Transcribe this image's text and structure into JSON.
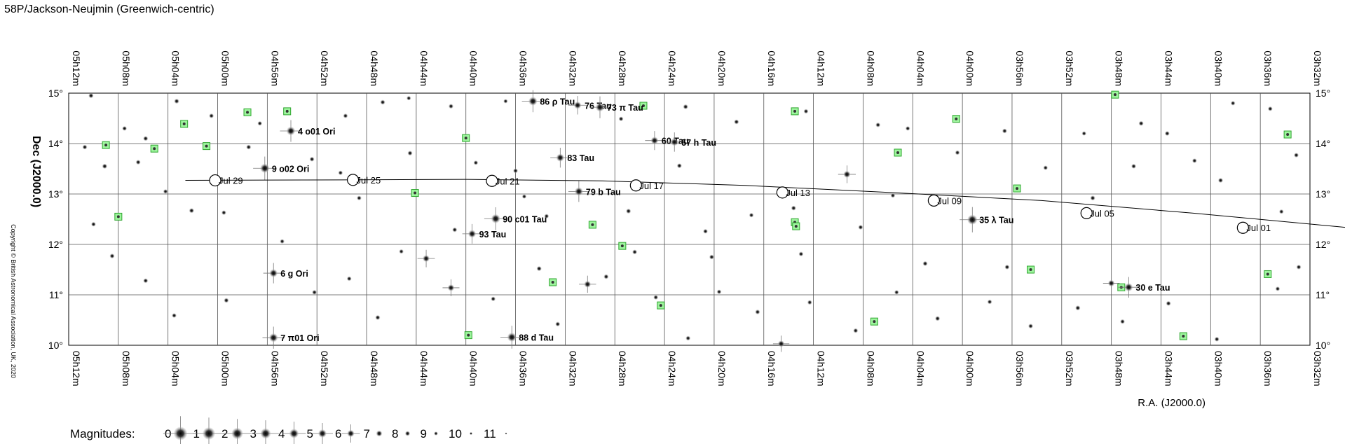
{
  "title": "58P/Jackson-Neujmin  (Greenwich-centric)",
  "copyright": "Copyright © British Astronomical Association, UK, 2020",
  "chart_data": {
    "type": "scatter",
    "xlabel": "R.A. (J2000.0)",
    "ylabel": "Dec (J2000.0)",
    "ra_ticks": [
      "05h12m",
      "05h08m",
      "05h04m",
      "05h00m",
      "04h56m",
      "04h52m",
      "04h48m",
      "04h44m",
      "04h40m",
      "04h36m",
      "04h32m",
      "04h28m",
      "04h24m",
      "04h20m",
      "04h16m",
      "04h12m",
      "04h08m",
      "04h04m",
      "04h00m",
      "03h56m",
      "03h52m",
      "03h48m",
      "03h44m",
      "03h40m",
      "03h36m",
      "03h32m"
    ],
    "dec_ticks": [
      "15°",
      "14°",
      "13°",
      "12°",
      "11°",
      "10°"
    ],
    "xlim_ra_minutes": [
      312,
      212
    ],
    "ylim_deg": [
      10,
      15
    ],
    "grid": true,
    "comet_path": [
      {
        "ra": 302.6,
        "dec": 13.27
      },
      {
        "ra": 290.0,
        "dec": 13.28
      },
      {
        "ra": 280.0,
        "dec": 13.29
      },
      {
        "ra": 269.0,
        "dec": 13.26
      },
      {
        "ra": 257.5,
        "dec": 13.17
      },
      {
        "ra": 245.8,
        "dec": 13.03
      },
      {
        "ra": 233.6,
        "dec": 12.87
      },
      {
        "ra": 221.4,
        "dec": 12.62
      },
      {
        "ra": 208.8,
        "dec": 12.33
      }
    ],
    "date_marks": [
      {
        "label": "Jul 29",
        "ra": 300.2,
        "dec": 13.27
      },
      {
        "label": "Jul 25",
        "ra": 289.1,
        "dec": 13.28
      },
      {
        "label": "Jul 21",
        "ra": 277.9,
        "dec": 13.26
      },
      {
        "label": "Jul 17",
        "ra": 266.3,
        "dec": 13.17
      },
      {
        "label": "Jul 13",
        "ra": 254.5,
        "dec": 13.03
      },
      {
        "label": "Jul 09",
        "ra": 242.3,
        "dec": 12.87
      },
      {
        "label": "Jul 05",
        "ra": 230.0,
        "dec": 12.62
      },
      {
        "label": "Jul 01",
        "ra": 217.4,
        "dec": 12.33
      }
    ],
    "named_stars": [
      {
        "label": "86 ρ Tau",
        "ra": 274.6,
        "dec": 14.84,
        "mag": 4.6
      },
      {
        "label": "76 Tau",
        "ra": 271.0,
        "dec": 14.76,
        "mag": 5.9
      },
      {
        "label": "73 π Tau",
        "ra": 269.2,
        "dec": 14.72,
        "mag": 4.7
      },
      {
        "label": "4 o01 Ori",
        "ra": 294.1,
        "dec": 14.25,
        "mag": 4.7
      },
      {
        "label": "60 Tau",
        "ra": 264.8,
        "dec": 14.06,
        "mag": 5.7
      },
      {
        "label": "57 h Tau",
        "ra": 263.2,
        "dec": 14.03,
        "mag": 5.6
      },
      {
        "label": "83 Tau",
        "ra": 272.4,
        "dec": 13.72,
        "mag": 5.4
      },
      {
        "label": "9 o02 Ori",
        "ra": 296.2,
        "dec": 13.51,
        "mag": 4.1
      },
      {
        "label": "79 b Tau",
        "ra": 270.9,
        "dec": 13.05,
        "mag": 5.0
      },
      {
        "label": "90 c01 Tau",
        "ra": 277.6,
        "dec": 12.51,
        "mag": 4.3
      },
      {
        "label": "93 Tau",
        "ra": 279.5,
        "dec": 12.21,
        "mag": 5.5
      },
      {
        "label": "35 λ Tau",
        "ra": 239.2,
        "dec": 12.49,
        "mag": 3.4
      },
      {
        "label": "6 g Ori",
        "ra": 295.5,
        "dec": 11.43,
        "mag": 5.2
      },
      {
        "label": "30 e Tau",
        "ra": 226.6,
        "dec": 11.15,
        "mag": 5.1
      },
      {
        "label": "7 π01 Ori",
        "ra": 295.5,
        "dec": 10.15,
        "mag": 4.6
      },
      {
        "label": "88 d Tau",
        "ra": 276.3,
        "dec": 10.16,
        "mag": 4.3
      }
    ],
    "other_stars": [
      {
        "ra": 283.2,
        "dec": 11.72,
        "mag": 6.3
      },
      {
        "ra": 281.2,
        "dec": 11.14,
        "mag": 6.5
      },
      {
        "ra": 270.2,
        "dec": 11.21,
        "mag": 6.4
      },
      {
        "ra": 254.6,
        "dec": 10.03,
        "mag": 6.7
      },
      {
        "ra": 249.3,
        "dec": 13.39,
        "mag": 6.2
      },
      {
        "ra": 228.0,
        "dec": 11.23,
        "mag": 6.6
      },
      {
        "ra": 310.2,
        "dec": 14.95,
        "mag": 8.0
      },
      {
        "ra": 307.5,
        "dec": 14.3,
        "mag": 8.3
      },
      {
        "ra": 305.8,
        "dec": 14.1,
        "mag": 8.1
      },
      {
        "ra": 303.3,
        "dec": 14.84,
        "mag": 8.0
      },
      {
        "ra": 300.5,
        "dec": 14.55,
        "mag": 8.2
      },
      {
        "ra": 296.6,
        "dec": 14.4,
        "mag": 8.4
      },
      {
        "ra": 289.7,
        "dec": 14.55,
        "mag": 8.3
      },
      {
        "ra": 286.7,
        "dec": 14.82,
        "mag": 8.1
      },
      {
        "ra": 284.6,
        "dec": 14.9,
        "mag": 8.5
      },
      {
        "ra": 281.2,
        "dec": 14.74,
        "mag": 8.2
      },
      {
        "ra": 276.8,
        "dec": 14.84,
        "mag": 8.6
      },
      {
        "ra": 267.5,
        "dec": 14.49,
        "mag": 8.3
      },
      {
        "ra": 262.3,
        "dec": 14.73,
        "mag": 8.0
      },
      {
        "ra": 258.2,
        "dec": 14.43,
        "mag": 8.1
      },
      {
        "ra": 252.6,
        "dec": 14.64,
        "mag": 8.3
      },
      {
        "ra": 246.8,
        "dec": 14.37,
        "mag": 8.2
      },
      {
        "ra": 244.4,
        "dec": 14.3,
        "mag": 8.4
      },
      {
        "ra": 236.6,
        "dec": 14.25,
        "mag": 8.2
      },
      {
        "ra": 230.2,
        "dec": 14.2,
        "mag": 8.5
      },
      {
        "ra": 225.6,
        "dec": 14.4,
        "mag": 8.1
      },
      {
        "ra": 223.5,
        "dec": 14.2,
        "mag": 8.2
      },
      {
        "ra": 218.2,
        "dec": 14.8,
        "mag": 8.4
      },
      {
        "ra": 215.2,
        "dec": 14.69,
        "mag": 8.3
      },
      {
        "ra": 310.7,
        "dec": 13.93,
        "mag": 8.2
      },
      {
        "ra": 309.1,
        "dec": 13.55,
        "mag": 7.9
      },
      {
        "ra": 306.4,
        "dec": 13.63,
        "mag": 8.2
      },
      {
        "ra": 304.2,
        "dec": 13.05,
        "mag": 8.4
      },
      {
        "ra": 302.1,
        "dec": 12.67,
        "mag": 8.0
      },
      {
        "ra": 299.5,
        "dec": 12.63,
        "mag": 8.3
      },
      {
        "ra": 297.5,
        "dec": 13.93,
        "mag": 8.1
      },
      {
        "ra": 292.4,
        "dec": 13.69,
        "mag": 8.2
      },
      {
        "ra": 290.1,
        "dec": 13.42,
        "mag": 8.4
      },
      {
        "ra": 288.6,
        "dec": 12.92,
        "mag": 8.3
      },
      {
        "ra": 284.5,
        "dec": 13.81,
        "mag": 8.1
      },
      {
        "ra": 279.2,
        "dec": 13.62,
        "mag": 8.4
      },
      {
        "ra": 276.0,
        "dec": 13.46,
        "mag": 8.2
      },
      {
        "ra": 275.3,
        "dec": 12.95,
        "mag": 8.5
      },
      {
        "ra": 273.5,
        "dec": 12.56,
        "mag": 8.3
      },
      {
        "ra": 266.9,
        "dec": 12.66,
        "mag": 8.0
      },
      {
        "ra": 266.4,
        "dec": 11.85,
        "mag": 8.2
      },
      {
        "ra": 262.8,
        "dec": 13.56,
        "mag": 8.1
      },
      {
        "ra": 260.7,
        "dec": 12.26,
        "mag": 8.3
      },
      {
        "ra": 260.2,
        "dec": 11.75,
        "mag": 8.2
      },
      {
        "ra": 257.0,
        "dec": 12.58,
        "mag": 8.4
      },
      {
        "ra": 253.6,
        "dec": 12.72,
        "mag": 8.1
      },
      {
        "ra": 253.0,
        "dec": 11.81,
        "mag": 8.3
      },
      {
        "ra": 248.2,
        "dec": 12.34,
        "mag": 8.2
      },
      {
        "ra": 245.6,
        "dec": 12.97,
        "mag": 8.4
      },
      {
        "ra": 243.0,
        "dec": 11.62,
        "mag": 8.1
      },
      {
        "ra": 240.4,
        "dec": 13.82,
        "mag": 8.3
      },
      {
        "ra": 236.4,
        "dec": 11.55,
        "mag": 8.2
      },
      {
        "ra": 233.3,
        "dec": 13.52,
        "mag": 8.4
      },
      {
        "ra": 229.5,
        "dec": 12.92,
        "mag": 8.0
      },
      {
        "ra": 226.2,
        "dec": 13.55,
        "mag": 8.2
      },
      {
        "ra": 221.3,
        "dec": 13.66,
        "mag": 8.3
      },
      {
        "ra": 219.2,
        "dec": 13.27,
        "mag": 8.1
      },
      {
        "ra": 214.3,
        "dec": 12.65,
        "mag": 8.4
      },
      {
        "ra": 213.1,
        "dec": 13.77,
        "mag": 8.2
      },
      {
        "ra": 310.0,
        "dec": 12.4,
        "mag": 8.3
      },
      {
        "ra": 308.5,
        "dec": 11.77,
        "mag": 8.1
      },
      {
        "ra": 305.8,
        "dec": 11.28,
        "mag": 8.2
      },
      {
        "ra": 303.5,
        "dec": 10.59,
        "mag": 8.3
      },
      {
        "ra": 299.3,
        "dec": 10.89,
        "mag": 8.1
      },
      {
        "ra": 294.8,
        "dec": 12.06,
        "mag": 8.4
      },
      {
        "ra": 292.2,
        "dec": 11.05,
        "mag": 8.2
      },
      {
        "ra": 289.4,
        "dec": 11.32,
        "mag": 8.3
      },
      {
        "ra": 287.1,
        "dec": 10.55,
        "mag": 8.1
      },
      {
        "ra": 285.2,
        "dec": 11.86,
        "mag": 8.4
      },
      {
        "ra": 280.9,
        "dec": 12.29,
        "mag": 8.2
      },
      {
        "ra": 277.8,
        "dec": 10.92,
        "mag": 8.3
      },
      {
        "ra": 274.1,
        "dec": 11.52,
        "mag": 8.0
      },
      {
        "ra": 272.6,
        "dec": 10.42,
        "mag": 8.2
      },
      {
        "ra": 268.7,
        "dec": 11.36,
        "mag": 8.1
      },
      {
        "ra": 264.7,
        "dec": 10.95,
        "mag": 8.3
      },
      {
        "ra": 262.1,
        "dec": 10.14,
        "mag": 8.2
      },
      {
        "ra": 259.6,
        "dec": 11.06,
        "mag": 8.4
      },
      {
        "ra": 256.5,
        "dec": 10.66,
        "mag": 8.1
      },
      {
        "ra": 252.3,
        "dec": 10.85,
        "mag": 8.3
      },
      {
        "ra": 248.6,
        "dec": 10.29,
        "mag": 8.2
      },
      {
        "ra": 245.3,
        "dec": 11.05,
        "mag": 8.4
      },
      {
        "ra": 242.0,
        "dec": 10.53,
        "mag": 8.1
      },
      {
        "ra": 237.8,
        "dec": 10.86,
        "mag": 8.3
      },
      {
        "ra": 234.5,
        "dec": 10.38,
        "mag": 8.2
      },
      {
        "ra": 230.7,
        "dec": 10.74,
        "mag": 8.0
      },
      {
        "ra": 227.1,
        "dec": 10.47,
        "mag": 8.3
      },
      {
        "ra": 223.4,
        "dec": 10.83,
        "mag": 8.1
      },
      {
        "ra": 219.5,
        "dec": 10.12,
        "mag": 8.2
      },
      {
        "ra": 214.6,
        "dec": 11.12,
        "mag": 8.4
      },
      {
        "ra": 212.9,
        "dec": 11.55,
        "mag": 8.2
      }
    ],
    "nonstellar": [
      {
        "ra": 309.0,
        "dec": 13.97
      },
      {
        "ra": 305.1,
        "dec": 13.9
      },
      {
        "ra": 302.7,
        "dec": 14.39
      },
      {
        "ra": 300.9,
        "dec": 13.95
      },
      {
        "ra": 297.6,
        "dec": 14.62
      },
      {
        "ra": 294.4,
        "dec": 14.64
      },
      {
        "ra": 308.0,
        "dec": 12.55
      },
      {
        "ra": 284.1,
        "dec": 13.02
      },
      {
        "ra": 280.0,
        "dec": 14.11
      },
      {
        "ra": 279.8,
        "dec": 10.2
      },
      {
        "ra": 273.0,
        "dec": 11.25
      },
      {
        "ra": 269.8,
        "dec": 12.39
      },
      {
        "ra": 267.4,
        "dec": 11.97
      },
      {
        "ra": 265.7,
        "dec": 14.75
      },
      {
        "ra": 264.3,
        "dec": 10.79
      },
      {
        "ra": 253.5,
        "dec": 14.64
      },
      {
        "ra": 253.5,
        "dec": 12.44
      },
      {
        "ra": 253.4,
        "dec": 12.36
      },
      {
        "ra": 247.1,
        "dec": 10.47
      },
      {
        "ra": 245.2,
        "dec": 13.82
      },
      {
        "ra": 240.5,
        "dec": 14.49
      },
      {
        "ra": 235.6,
        "dec": 13.11
      },
      {
        "ra": 234.5,
        "dec": 11.5
      },
      {
        "ra": 227.7,
        "dec": 14.97
      },
      {
        "ra": 227.2,
        "dec": 11.15
      },
      {
        "ra": 222.2,
        "dec": 10.18
      },
      {
        "ra": 215.4,
        "dec": 11.41
      },
      {
        "ra": 213.8,
        "dec": 14.18
      }
    ],
    "legend": {
      "label": "Magnitudes:",
      "entries": [
        "0",
        "1",
        "2",
        "3",
        "4",
        "5",
        "6",
        "7",
        "8",
        "9",
        "10",
        "11"
      ]
    }
  }
}
